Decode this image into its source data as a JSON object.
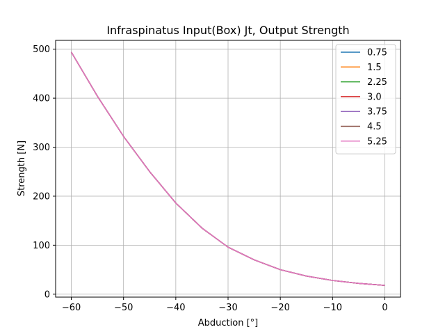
{
  "chart_data": {
    "type": "line",
    "title": "Infraspinatus Input(Box) Jt, Output Strength",
    "xlabel": "Abduction [°]",
    "ylabel": "Strength [N]",
    "xlim": [
      -63,
      3
    ],
    "ylim": [
      -6,
      518
    ],
    "xticks": [
      -60,
      -50,
      -40,
      -30,
      -20,
      -10,
      0
    ],
    "yticks": [
      0,
      100,
      200,
      300,
      400,
      500
    ],
    "grid": true,
    "legend_position": "top-right",
    "x": [
      -60,
      -55,
      -50,
      -45,
      -40,
      -35,
      -30,
      -25,
      -20,
      -15,
      -10,
      -5,
      0
    ],
    "series": [
      {
        "name": "0.75",
        "color": "#1f77b4",
        "values": [
          494,
          404,
          322,
          250,
          186,
          135,
          96,
          70,
          50,
          37,
          28,
          22,
          18
        ]
      },
      {
        "name": "1.5",
        "color": "#ff7f0e",
        "values": [
          494,
          404,
          322,
          250,
          186,
          135,
          96,
          70,
          50,
          37,
          28,
          22,
          18
        ]
      },
      {
        "name": "2.25",
        "color": "#2ca02c",
        "values": [
          494,
          404,
          322,
          250,
          186,
          135,
          96,
          70,
          50,
          37,
          28,
          22,
          18
        ]
      },
      {
        "name": "3.0",
        "color": "#d62728",
        "values": [
          494,
          404,
          322,
          250,
          186,
          135,
          96,
          70,
          50,
          37,
          28,
          22,
          18
        ]
      },
      {
        "name": "3.75",
        "color": "#9467bd",
        "values": [
          494,
          404,
          322,
          250,
          186,
          135,
          96,
          70,
          50,
          37,
          28,
          22,
          18
        ]
      },
      {
        "name": "4.5",
        "color": "#8c564b",
        "values": [
          494,
          404,
          322,
          250,
          186,
          135,
          96,
          70,
          50,
          37,
          28,
          22,
          18
        ]
      },
      {
        "name": "5.25",
        "color": "#e377c2",
        "values": [
          494,
          404,
          322,
          250,
          186,
          135,
          96,
          70,
          50,
          37,
          28,
          22,
          18
        ]
      }
    ]
  }
}
